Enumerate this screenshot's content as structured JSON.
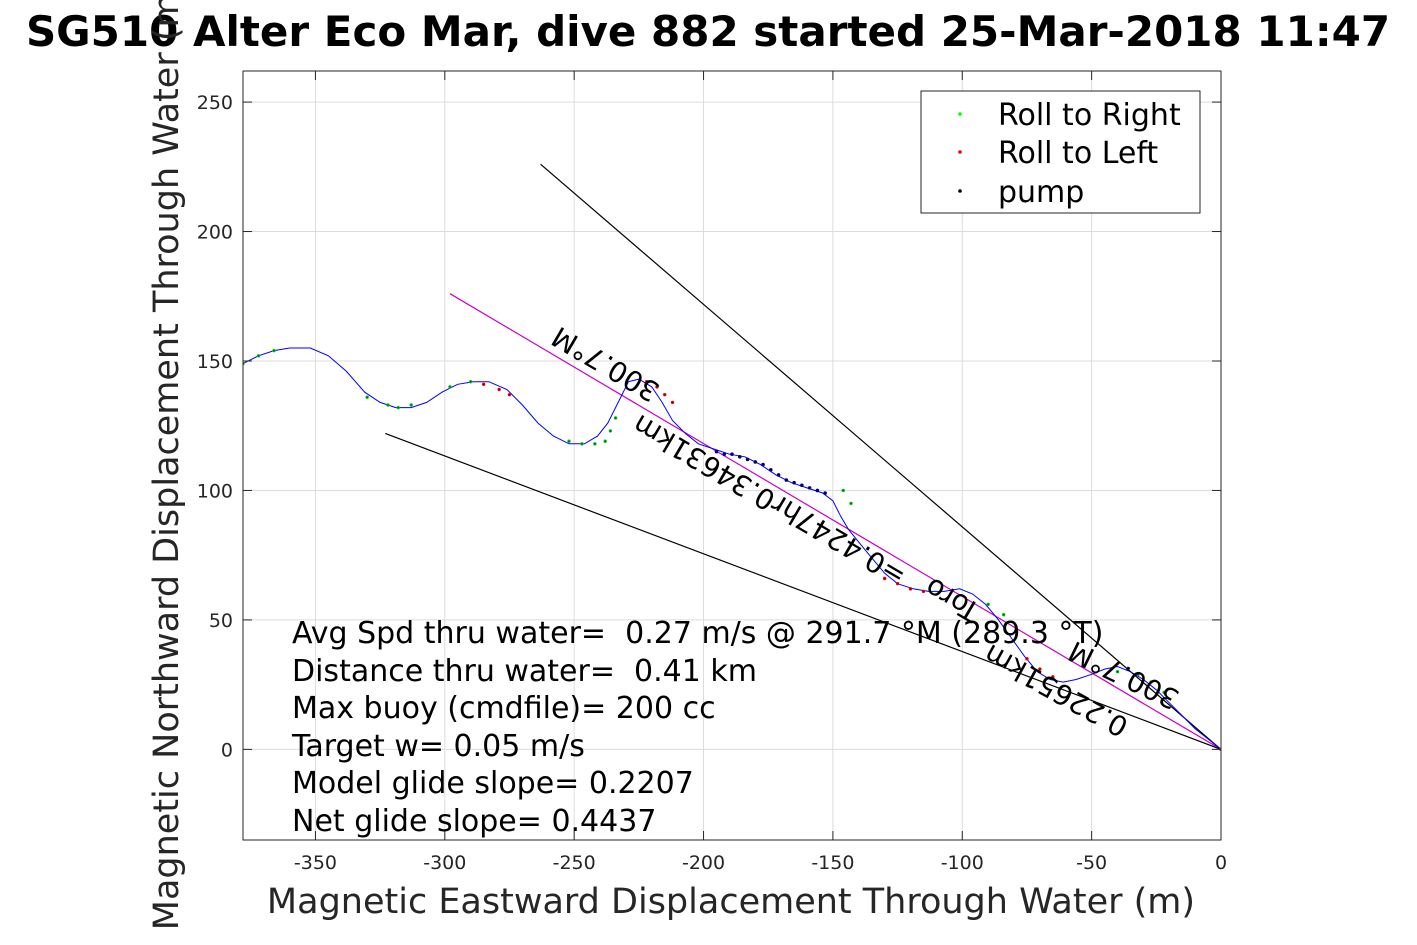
{
  "chart_data": {
    "type": "line",
    "title": "SG510 Alter Eco Mar, dive 882 started 25-Mar-2018 11:47",
    "xlabel": "Magnetic Eastward Displacement Through Water (m)",
    "ylabel": "Magnetic Northward Displacement Through Water (m)",
    "xlim": [
      -378,
      0
    ],
    "ylim": [
      -35,
      262
    ],
    "grid": true,
    "xticks": [
      -350,
      -300,
      -250,
      -200,
      -150,
      -100,
      -50,
      0
    ],
    "yticks": [
      0,
      50,
      100,
      150,
      200,
      250
    ],
    "legend": {
      "placement": "top-right",
      "entries": [
        {
          "label": "Roll to Right",
          "color": "#00ff00"
        },
        {
          "label": "Roll to Left",
          "color": "#ff0000"
        },
        {
          "label": "pump",
          "color": "#000000"
        }
      ]
    },
    "track": {
      "name": "track",
      "color": "#0000ff",
      "x": [
        -378,
        -372,
        -366,
        -360,
        -352,
        -345,
        -338,
        -331,
        -325,
        -319,
        -313,
        -307,
        -301,
        -295,
        -289,
        -283,
        -276,
        -270,
        -264,
        -258,
        -252,
        -246,
        -241,
        -237,
        -233,
        -229,
        -225,
        -220,
        -216,
        -212,
        -207,
        -202,
        -196,
        -190,
        -184,
        -178,
        -172,
        -166,
        -160,
        -154,
        -150,
        -147,
        -144,
        -140,
        -135,
        -130,
        -125,
        -119,
        -113,
        -107,
        -101,
        -96,
        -91,
        -86,
        -81,
        -76,
        -71,
        -66,
        -61,
        -56,
        -50,
        -45,
        -40,
        -35,
        -30,
        -25,
        -20,
        -15,
        -10,
        -5,
        0
      ],
      "y": [
        149,
        152,
        154,
        155,
        155,
        152,
        146,
        138,
        134,
        132,
        132,
        134,
        138,
        141,
        142,
        142,
        139,
        133,
        126,
        121,
        118,
        118,
        121,
        126,
        134,
        142,
        143,
        140,
        134,
        127,
        122,
        118,
        116,
        114,
        113,
        110,
        106,
        103,
        101,
        99,
        96,
        90,
        85,
        80,
        74,
        68,
        64,
        62,
        61,
        61,
        62,
        60,
        56,
        50,
        43,
        36,
        30,
        27,
        26,
        27,
        29,
        31,
        32,
        30,
        27,
        23,
        18,
        13,
        8,
        4,
        0
      ]
    },
    "roll_right_x": [
      -378,
      -372,
      -366,
      -330,
      -322,
      -318,
      -313,
      -298,
      -290,
      -252,
      -247,
      -242,
      -238,
      -236,
      -234,
      -146,
      -143,
      -90,
      -84,
      -40,
      -32,
      -27,
      -22
    ],
    "roll_right_y": [
      149,
      152,
      154,
      136,
      133,
      132,
      133,
      140,
      142,
      119,
      118,
      118,
      119,
      123,
      128,
      100,
      95,
      56,
      52,
      30,
      29,
      26,
      22
    ],
    "roll_left_x": [
      -285,
      -279,
      -275,
      -222,
      -218,
      -215,
      -212,
      -130,
      -125,
      -120,
      -115,
      -75,
      -70,
      -65,
      0
    ],
    "roll_left_y": [
      141,
      139,
      137,
      142,
      140,
      137,
      134,
      66,
      64,
      62,
      61,
      35,
      31,
      28,
      0
    ],
    "pump_x": [
      -195,
      -192,
      -189,
      -186,
      -183,
      -180,
      -177,
      -174,
      -171,
      -168,
      -165,
      -162,
      -159,
      -156,
      -153
    ],
    "pump_y": [
      115,
      114,
      114,
      113,
      112,
      111,
      110,
      108,
      106,
      104,
      103,
      102,
      101,
      100,
      99
    ],
    "reference_lines": [
      {
        "name": "heading-line",
        "color": "#cc00cc",
        "x": [
          -298,
          0
        ],
        "y": [
          176,
          0
        ]
      },
      {
        "name": "upper-envelope",
        "color": "#000000",
        "x": [
          -263,
          0
        ],
        "y": [
          226,
          0
        ]
      },
      {
        "name": "lower-envelope",
        "color": "#000000",
        "x": [
          -323,
          0
        ],
        "y": [
          122,
          0
        ]
      }
    ],
    "rotated_annotations": [
      {
        "text": "300.7°M",
        "x": -236,
        "y": 152,
        "angle": 210.5
      },
      {
        "text": "0.34631km",
        "x": -198,
        "y": 114,
        "angle": 210.5
      },
      {
        "text": "=0.4247hr",
        "x": -146,
        "y": 84,
        "angle": 210.5
      },
      {
        "text": "Toro",
        "x": -102,
        "y": 61,
        "angle": 210.5
      },
      {
        "text": "0.22651km",
        "x": -62,
        "y": 26,
        "angle": 209
      },
      {
        "text": "300.7°M",
        "x": -36,
        "y": 32,
        "angle": 206
      }
    ],
    "annotations": [
      "Avg Spd thru water=  0.27 m/s @ 291.7 °M (289.3 °T)",
      "Distance thru water=  0.41 km",
      "Max buoy (cmdfile)= 200 cc",
      "Target w= 0.05 m/s",
      "Model glide slope= 0.2207",
      "Net glide slope= 0.4437"
    ]
  }
}
